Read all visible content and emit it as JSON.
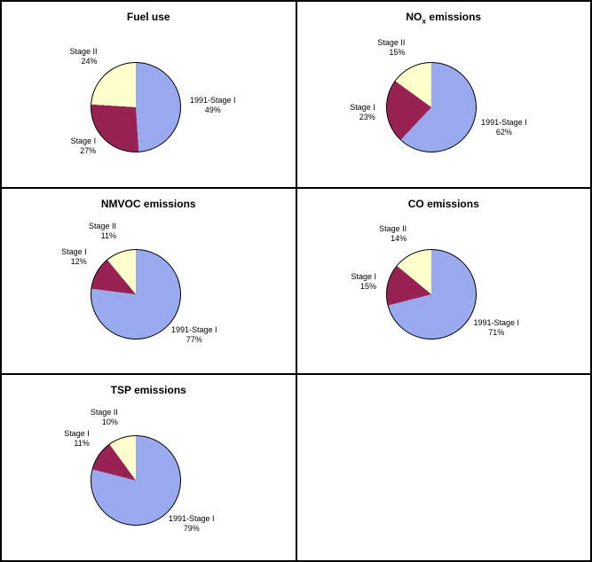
{
  "background_color": "#ffffff",
  "grid_border_color": "#000000",
  "title_fontsize": 12,
  "label_fontsize": 9,
  "charts": [
    {
      "title": "Fuel use",
      "type": "pie",
      "pie_border_color": "#000000",
      "slices": [
        {
          "label": "1991-Stage I",
          "pct": 49,
          "color": "#99aaee"
        },
        {
          "label": "Stage I",
          "pct": 27,
          "color": "#992255"
        },
        {
          "label": "Stage II",
          "pct": 24,
          "color": "#ffffcc"
        }
      ]
    },
    {
      "title_html": "NO<sub>x</sub> emissions",
      "title": "NOx emissions",
      "type": "pie",
      "pie_border_color": "#000000",
      "slices": [
        {
          "label": "1991-Stage I",
          "pct": 62,
          "color": "#99aaee"
        },
        {
          "label": "Stage I",
          "pct": 23,
          "color": "#992255"
        },
        {
          "label": "Stage II",
          "pct": 15,
          "color": "#ffffcc"
        }
      ]
    },
    {
      "title": "NMVOC emissions",
      "type": "pie",
      "pie_border_color": "#000000",
      "slices": [
        {
          "label": "1991-Stage I",
          "pct": 77,
          "color": "#99aaee"
        },
        {
          "label": "Stage I",
          "pct": 12,
          "color": "#992255"
        },
        {
          "label": "Stage II",
          "pct": 11,
          "color": "#ffffcc"
        }
      ]
    },
    {
      "title": "CO emissions",
      "type": "pie",
      "pie_border_color": "#000000",
      "slices": [
        {
          "label": "1991-Stage I",
          "pct": 71,
          "color": "#99aaee"
        },
        {
          "label": "Stage I",
          "pct": 15,
          "color": "#992255"
        },
        {
          "label": "Stage II",
          "pct": 14,
          "color": "#ffffcc"
        }
      ]
    },
    {
      "title": "TSP emissions",
      "type": "pie",
      "pie_border_color": "#000000",
      "slices": [
        {
          "label": "1991-Stage I",
          "pct": 79,
          "color": "#99aaee"
        },
        {
          "label": "Stage I",
          "pct": 11,
          "color": "#992255"
        },
        {
          "label": "Stage II",
          "pct": 10,
          "color": "#ffffcc"
        }
      ]
    },
    null
  ]
}
